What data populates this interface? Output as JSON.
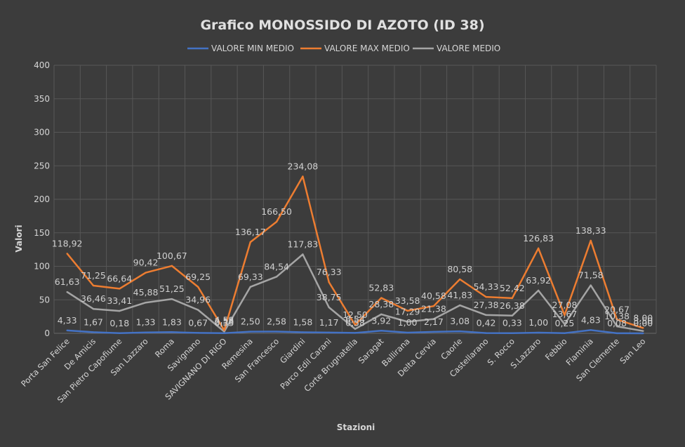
{
  "chart_data": {
    "type": "line",
    "title": "Grafico MONOSSIDO DI AZOTO (ID 38)",
    "xlabel": "Stazioni",
    "ylabel": "Valori",
    "ylim": [
      0,
      400
    ],
    "yticks": [
      "0",
      "50",
      "100",
      "150",
      "200",
      "250",
      "300",
      "350",
      "400"
    ],
    "grid": true,
    "legend_position": "top",
    "categories": [
      "Porta San Felice",
      "De Amicis",
      "San Pietro Capofiume",
      "San Lazzaro",
      "Roma",
      "Savignano",
      "SAVIGNANO DI RIGO",
      "Remesina",
      "San Francesco",
      "Giardini",
      "Parco Edil Carani",
      "Corte Brugnatella",
      "Saragat",
      "Ballirana",
      "Delta Cervia",
      "Caorle",
      "Castellarano",
      "S. Rocco",
      "S.Lazzaro",
      "Febbio",
      "Flaminia",
      "San Clemente",
      "San Leo"
    ],
    "series": [
      {
        "name": "VALORE MIN MEDIO",
        "color": "#4472c4",
        "values": [
          4.33,
          1.67,
          0.18,
          1.33,
          1.83,
          0.67,
          0.33,
          2.5,
          2.58,
          1.58,
          1.17,
          0.58,
          3.92,
          1.0,
          2.17,
          3.08,
          0.42,
          0.33,
          1.0,
          0.25,
          4.83,
          0.08,
          0.0
        ],
        "labels": [
          "4,33",
          "1,67",
          "0,18",
          "1,33",
          "1,83",
          "0,67",
          "0,33",
          "2,50",
          "2,58",
          "1,58",
          "1,17",
          "0,58",
          "3,92",
          "1,00",
          "2,17",
          "3,08",
          "0,42",
          "0,33",
          "1,00",
          "0,25",
          "4,83",
          "0,08",
          "0,00"
        ]
      },
      {
        "name": "VALORE MAX MEDIO",
        "color": "#ed7d31",
        "values": [
          118.92,
          71.25,
          66.64,
          90.42,
          100.67,
          69.25,
          4.58,
          136.17,
          166.5,
          234.08,
          76.33,
          12.5,
          52.83,
          33.58,
          40.58,
          80.58,
          54.33,
          52.42,
          126.83,
          27.08,
          138.33,
          20.67,
          8.0
        ],
        "labels": [
          "118,92",
          "71,25",
          "66,64",
          "90,42",
          "100,67",
          "69,25",
          "4,58",
          "136,17",
          "166,50",
          "234,08",
          "76,33",
          "12,50",
          "52,83",
          "33,58",
          "40,58",
          "80,58",
          "54,33",
          "52,42",
          "126,83",
          "27,08",
          "138,33",
          "20,67",
          "8,00"
        ]
      },
      {
        "name": "VALORE MEDIO",
        "color": "#a5a5a5",
        "values": [
          61.63,
          36.46,
          33.41,
          45.88,
          51.25,
          34.96,
          2.58,
          69.33,
          84.54,
          117.83,
          38.75,
          6.54,
          28.38,
          17.29,
          21.38,
          41.83,
          27.38,
          26.38,
          63.92,
          13.67,
          71.58,
          10.38,
          3.5
        ],
        "labels": [
          "61,63",
          "36,46",
          "33,41",
          "45,88",
          "51,25",
          "34,96",
          "2,58",
          "69,33",
          "84,54",
          "117,83",
          "38,75",
          "6,54",
          "28,38",
          "17,29",
          "21,38",
          "41,83",
          "27,38",
          "26,38",
          "63,92",
          "13,67",
          "71,58",
          "10,38",
          "3,50"
        ]
      }
    ]
  }
}
